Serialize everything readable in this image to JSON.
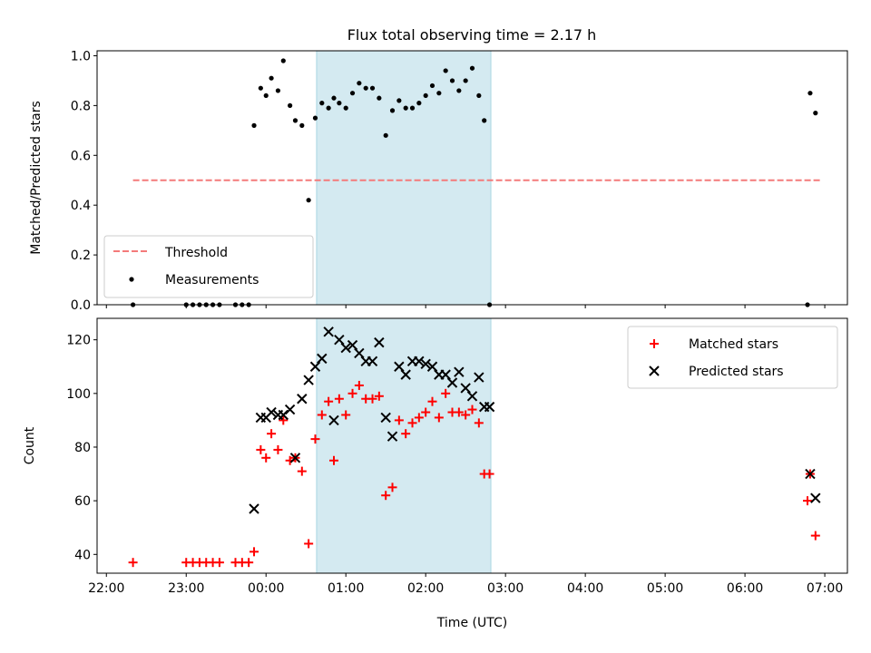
{
  "figure": {
    "title": "Flux total observing time = 2.17 h",
    "xlabel": "Time (UTC)"
  },
  "chart_data": [
    {
      "type": "scatter",
      "title": "Flux total observing time = 2.17 h",
      "xlabel": "",
      "ylabel": "Matched/Predicted stars",
      "ylim": [
        0.0,
        1.02
      ],
      "yticks": [
        0.0,
        0.2,
        0.4,
        0.6,
        0.8,
        1.0
      ],
      "ytick_labels": [
        "0.0",
        "0.2",
        "0.4",
        "0.6",
        "0.8",
        "1.0"
      ],
      "xlim": [
        "21:53",
        "07:17"
      ],
      "xticks": [
        "22:00",
        "23:00",
        "00:00",
        "01:00",
        "02:00",
        "03:00",
        "04:00",
        "05:00",
        "06:00",
        "07:00"
      ],
      "x_tick_labels_shown": false,
      "shaded_interval": {
        "x": [
          "00:38",
          "02:49"
        ],
        "color": "#d4eaf1"
      },
      "legend_position": "lower-left",
      "legend": [
        "Threshold",
        "Measurements"
      ],
      "series": [
        {
          "name": "Threshold",
          "kind": "dashed-line",
          "color": "#f47a7a",
          "x": [
            "22:20",
            "06:57"
          ],
          "y": [
            0.5,
            0.5
          ]
        },
        {
          "name": "Measurements",
          "kind": "dots",
          "color": "#000000",
          "x": [
            "22:20",
            "23:00",
            "23:05",
            "23:10",
            "23:15",
            "23:20",
            "23:25",
            "23:37",
            "23:42",
            "23:47",
            "23:51",
            "23:56",
            "00:00",
            "00:04",
            "00:09",
            "00:13",
            "00:18",
            "00:22",
            "00:27",
            "00:32",
            "00:37",
            "00:42",
            "00:47",
            "00:51",
            "00:55",
            "01:00",
            "01:05",
            "01:10",
            "01:15",
            "01:20",
            "01:25",
            "01:30",
            "01:35",
            "01:40",
            "01:45",
            "01:50",
            "01:55",
            "02:00",
            "02:05",
            "02:10",
            "02:15",
            "02:20",
            "02:25",
            "02:30",
            "02:35",
            "02:40",
            "02:44",
            "02:48",
            "06:47",
            "06:49",
            "06:53"
          ],
          "y": [
            0.0,
            0.0,
            0.0,
            0.0,
            0.0,
            0.0,
            0.0,
            0.0,
            0.0,
            0.0,
            0.72,
            0.87,
            0.84,
            0.91,
            0.86,
            0.98,
            0.8,
            0.74,
            0.72,
            0.42,
            0.75,
            0.81,
            0.79,
            0.83,
            0.81,
            0.79,
            0.85,
            0.89,
            0.87,
            0.87,
            0.83,
            0.68,
            0.78,
            0.82,
            0.79,
            0.79,
            0.81,
            0.84,
            0.88,
            0.85,
            0.94,
            0.9,
            0.86,
            0.9,
            0.95,
            0.84,
            0.74,
            0.0,
            0.0,
            0.85,
            0.77
          ]
        }
      ]
    },
    {
      "type": "scatter",
      "xlabel": "Time (UTC)",
      "ylabel": "Count",
      "ylim": [
        33,
        128
      ],
      "yticks": [
        40,
        60,
        80,
        100,
        120
      ],
      "ytick_labels": [
        "40",
        "60",
        "80",
        "100",
        "120"
      ],
      "xlim": [
        "21:53",
        "07:17"
      ],
      "xticks": [
        "22:00",
        "23:00",
        "00:00",
        "01:00",
        "02:00",
        "03:00",
        "04:00",
        "05:00",
        "06:00",
        "07:00"
      ],
      "xtick_labels": [
        "22:00",
        "23:00",
        "00:00",
        "01:00",
        "02:00",
        "03:00",
        "04:00",
        "05:00",
        "06:00",
        "07:00"
      ],
      "shaded_interval": {
        "x": [
          "00:38",
          "02:49"
        ],
        "color": "#d4eaf1"
      },
      "legend_position": "upper-right",
      "legend": [
        "Matched stars",
        "Predicted stars"
      ],
      "series": [
        {
          "name": "Matched stars",
          "kind": "plus",
          "color": "#ff0000",
          "x": [
            "22:20",
            "23:00",
            "23:05",
            "23:10",
            "23:15",
            "23:20",
            "23:25",
            "23:37",
            "23:42",
            "23:47",
            "23:51",
            "23:56",
            "00:00",
            "00:04",
            "00:09",
            "00:13",
            "00:18",
            "00:22",
            "00:27",
            "00:32",
            "00:37",
            "00:42",
            "00:47",
            "00:51",
            "00:55",
            "01:00",
            "01:05",
            "01:10",
            "01:15",
            "01:20",
            "01:25",
            "01:30",
            "01:35",
            "01:40",
            "01:45",
            "01:50",
            "01:55",
            "02:00",
            "02:05",
            "02:10",
            "02:15",
            "02:20",
            "02:25",
            "02:30",
            "02:35",
            "02:40",
            "02:44",
            "02:48",
            "06:47",
            "06:49",
            "06:53"
          ],
          "y": [
            37,
            37,
            37,
            37,
            37,
            37,
            37,
            37,
            37,
            37,
            41,
            79,
            76,
            85,
            79,
            90,
            75,
            76,
            71,
            44,
            83,
            92,
            97,
            75,
            98,
            92,
            100,
            103,
            98,
            98,
            99,
            62,
            65,
            90,
            85,
            89,
            91,
            93,
            97,
            91,
            100,
            93,
            93,
            92,
            94,
            89,
            70,
            70,
            60,
            70,
            47
          ]
        },
        {
          "name": "Predicted stars",
          "kind": "cross",
          "color": "#000000",
          "x": [
            "23:51",
            "23:56",
            "00:00",
            "00:04",
            "00:09",
            "00:13",
            "00:18",
            "00:22",
            "00:27",
            "00:32",
            "00:37",
            "00:42",
            "00:47",
            "00:51",
            "00:55",
            "01:00",
            "01:05",
            "01:10",
            "01:15",
            "01:20",
            "01:25",
            "01:30",
            "01:35",
            "01:40",
            "01:45",
            "01:50",
            "01:55",
            "02:00",
            "02:05",
            "02:10",
            "02:15",
            "02:20",
            "02:25",
            "02:30",
            "02:35",
            "02:40",
            "02:44",
            "02:48",
            "06:49",
            "06:53"
          ],
          "y": [
            57,
            91,
            91,
            93,
            92,
            92,
            94,
            76,
            98,
            105,
            110,
            113,
            123,
            90,
            120,
            117,
            118,
            115,
            112,
            112,
            119,
            91,
            84,
            110,
            107,
            112,
            112,
            111,
            110,
            107,
            107,
            104,
            108,
            102,
            99,
            106,
            95,
            95,
            70,
            61
          ]
        }
      ]
    }
  ]
}
